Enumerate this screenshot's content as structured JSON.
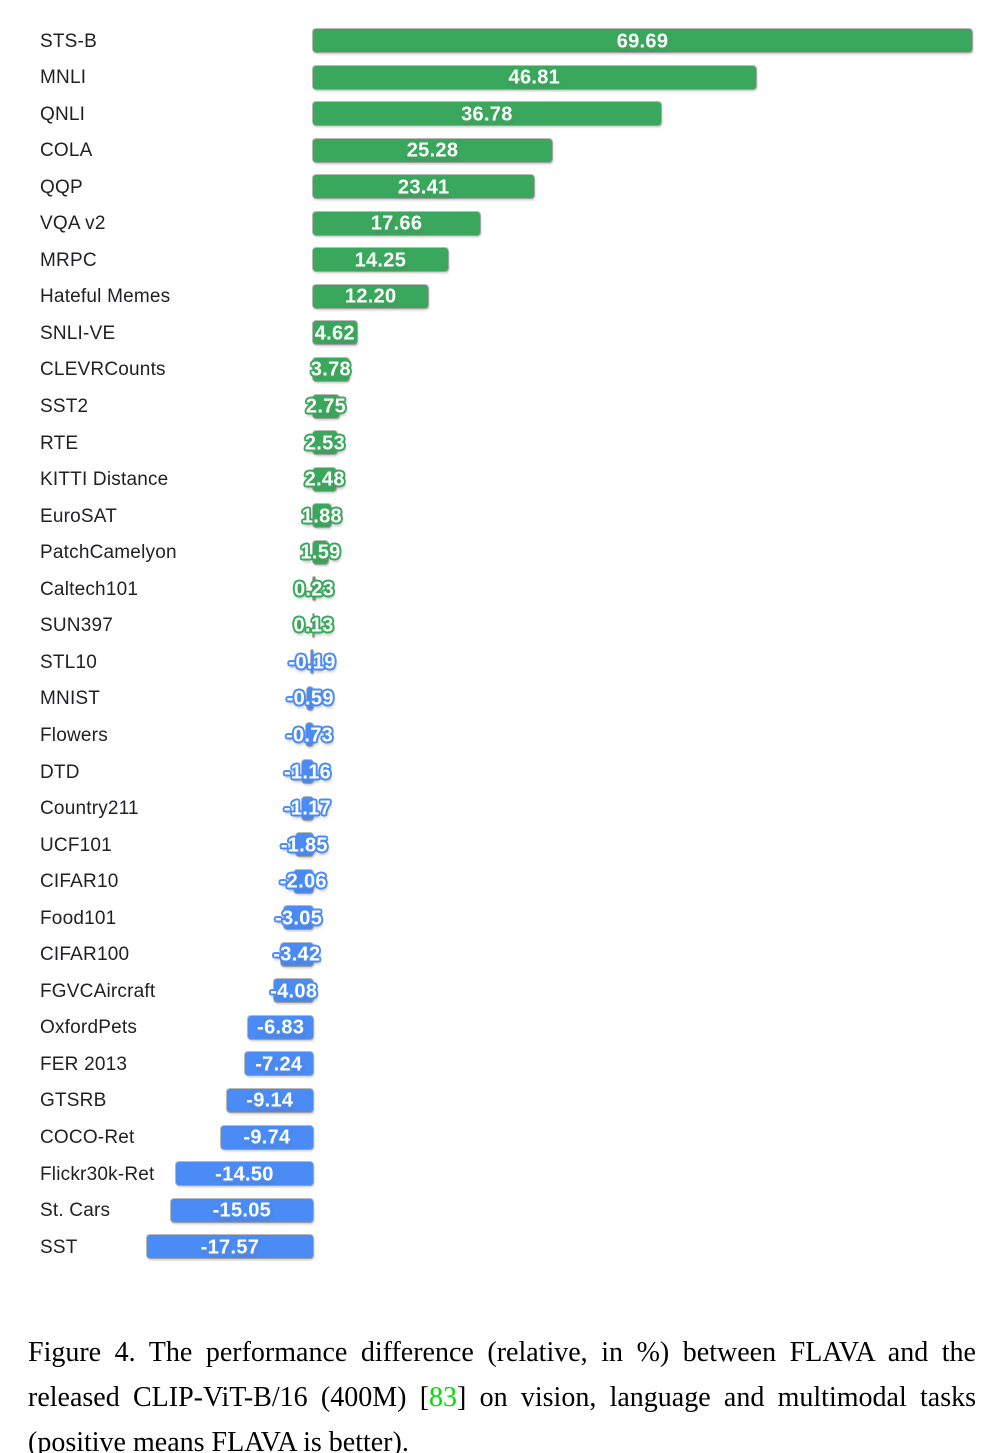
{
  "chart_data": {
    "type": "bar",
    "orientation": "horizontal",
    "categories": [
      "STS-B",
      "MNLI",
      "QNLI",
      "COLA",
      "QQP",
      "VQA v2",
      "MRPC",
      "Hateful Memes",
      "SNLI-VE",
      "CLEVRCounts",
      "SST2",
      "RTE",
      "KITTI Distance",
      "EuroSAT",
      "PatchCamelyon",
      "Caltech101",
      "SUN397",
      "STL10",
      "MNIST",
      "Flowers",
      "DTD",
      "Country211",
      "UCF101",
      "CIFAR10",
      "Food101",
      "CIFAR100",
      "FGVCAircraft",
      "OxfordPets",
      "FER 2013",
      "GTSRB",
      "COCO-Ret",
      "Flickr30k-Ret",
      "St. Cars",
      "SST"
    ],
    "values": [
      69.69,
      46.81,
      36.78,
      25.28,
      23.41,
      17.66,
      14.25,
      12.2,
      4.62,
      3.78,
      2.75,
      2.53,
      2.48,
      1.88,
      1.59,
      0.23,
      0.13,
      -0.19,
      -0.59,
      -0.73,
      -1.16,
      -1.17,
      -1.85,
      -2.06,
      -3.05,
      -3.42,
      -4.08,
      -6.83,
      -7.24,
      -9.14,
      -9.74,
      -14.5,
      -15.05,
      -17.57
    ],
    "display_values": [
      "69.69",
      "46.81",
      "36.78",
      "25.28",
      "23.41",
      "17.66",
      "14.25",
      "12.20",
      "4.62",
      "3.78",
      "2.75",
      "2.53",
      "2.48",
      "1.88",
      "1.59",
      "0.23",
      "0.13",
      "-0.19",
      "-0.59",
      "-0.73",
      "-1.16",
      "-1.17",
      "-1.85",
      "-2.06",
      "-3.05",
      "-3.42",
      "-4.08",
      "-6.83",
      "-7.24",
      "-9.14",
      "-9.74",
      "-14.50",
      "-15.05",
      "-17.57"
    ],
    "title": "",
    "xlabel": "",
    "ylabel": "",
    "xlim": [
      -17.57,
      69.69
    ],
    "grid": false,
    "legend": "none",
    "colors": {
      "positive_bar": "#3aa85c",
      "negative_bar": "#4b8bf5",
      "value_text": "#ffffff",
      "label_text": "#202124"
    }
  },
  "caption": {
    "before_citation": "Figure 4.  The performance difference (relative, in %) between FLAVA and the released CLIP-ViT-B/16 (400M) [",
    "citation": "83",
    "after_citation": "] on vision, language and multimodal tasks (positive means FLAVA is better)."
  }
}
